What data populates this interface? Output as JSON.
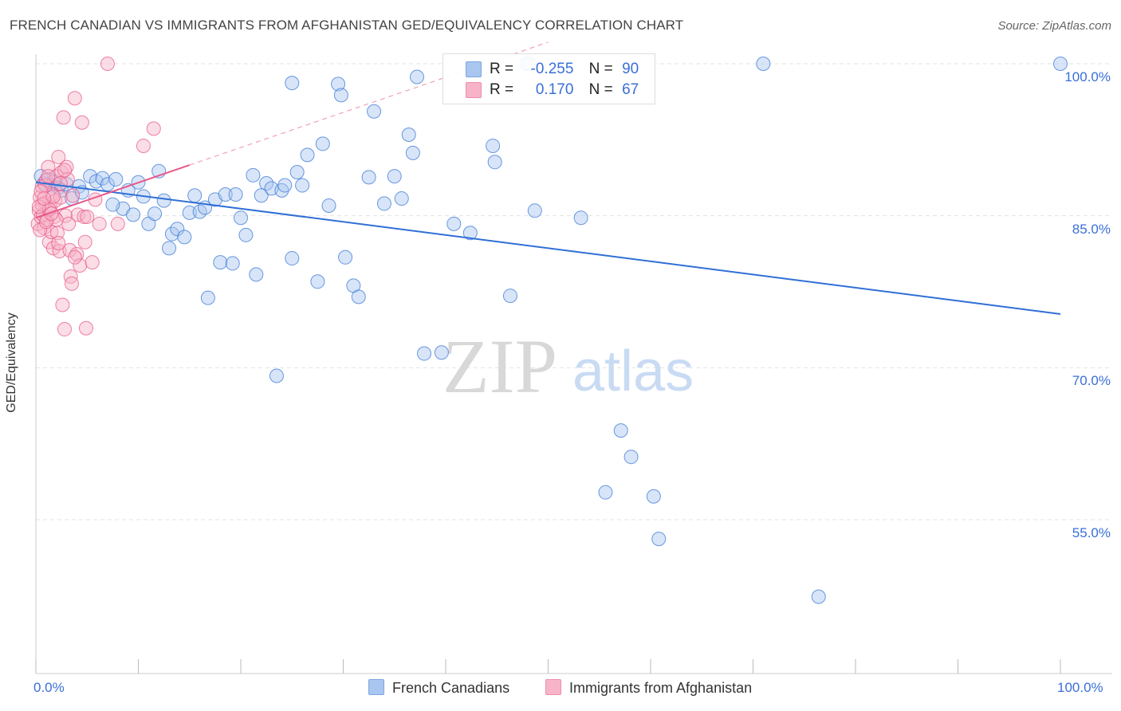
{
  "title": "FRENCH CANADIAN VS IMMIGRANTS FROM AFGHANISTAN GED/EQUIVALENCY CORRELATION CHART",
  "source": "Source: ZipAtlas.com",
  "watermark": {
    "zip": "ZIP",
    "atlas": "atlas"
  },
  "legend": {
    "rows": [
      {
        "r_label": "R =",
        "r_value": "-0.255",
        "n_label": "N =",
        "n_value": "90",
        "color": "#a8c6f0"
      },
      {
        "r_label": "R =",
        "r_value": "0.170",
        "n_label": "N =",
        "n_value": "67",
        "color": "#f7b4c8"
      }
    ],
    "bottom": [
      {
        "label": "French Canadians",
        "color": "#a8c6f0"
      },
      {
        "label": "Immigrants from Afghanistan",
        "color": "#f7b4c8"
      }
    ]
  },
  "chart_data": {
    "type": "scatter",
    "title": "FRENCH CANADIAN VS IMMIGRANTS FROM AFGHANISTAN GED/EQUIVALENCY CORRELATION CHART",
    "xlabel": "",
    "ylabel": "GED/Equivalency",
    "xlim": [
      0,
      100
    ],
    "ylim": [
      40,
      101.5
    ],
    "x_tick_labels": [
      "0.0%",
      "100.0%"
    ],
    "y_ticks": [
      100,
      85,
      70,
      55
    ],
    "y_tick_labels": [
      "100.0%",
      "85.0%",
      "70.0%",
      "55.0%"
    ],
    "grid": true,
    "legend_position": "top-center",
    "series": [
      {
        "name": "French Canadians",
        "color": "#3a78d6",
        "fill": "#a8c6f0",
        "r": -0.255,
        "n": 90,
        "trend": {
          "x": [
            0,
            100
          ],
          "y": [
            88.3,
            75.3
          ]
        },
        "points": [
          [
            0.5,
            88.9
          ],
          [
            0.8,
            88.2
          ],
          [
            1.2,
            88.6
          ],
          [
            1.5,
            88.0
          ],
          [
            1.8,
            88.4
          ],
          [
            2.2,
            87.8
          ],
          [
            2.5,
            87.5
          ],
          [
            3.0,
            88.1
          ],
          [
            3.5,
            86.7
          ],
          [
            4.2,
            87.9
          ],
          [
            5.3,
            88.9
          ],
          [
            5.9,
            88.4
          ],
          [
            6.5,
            88.7
          ],
          [
            7.0,
            88.1
          ],
          [
            7.8,
            88.6
          ],
          [
            8.5,
            85.7
          ],
          [
            9.0,
            87.5
          ],
          [
            9.5,
            85.1
          ],
          [
            10.0,
            88.3
          ],
          [
            10.5,
            86.9
          ],
          [
            11.0,
            84.2
          ],
          [
            11.6,
            85.2
          ],
          [
            12.0,
            89.4
          ],
          [
            12.5,
            86.5
          ],
          [
            13.0,
            81.8
          ],
          [
            13.3,
            83.2
          ],
          [
            13.8,
            83.7
          ],
          [
            14.5,
            82.9
          ],
          [
            15.0,
            85.3
          ],
          [
            15.5,
            87.0
          ],
          [
            16.0,
            85.4
          ],
          [
            16.5,
            85.8
          ],
          [
            16.8,
            76.9
          ],
          [
            17.5,
            86.6
          ],
          [
            18.0,
            80.4
          ],
          [
            18.5,
            87.1
          ],
          [
            19.2,
            80.3
          ],
          [
            19.5,
            87.1
          ],
          [
            20.0,
            84.8
          ],
          [
            20.5,
            83.1
          ],
          [
            21.2,
            89.0
          ],
          [
            21.5,
            79.2
          ],
          [
            22.0,
            87.0
          ],
          [
            22.5,
            88.2
          ],
          [
            23.0,
            87.7
          ],
          [
            23.5,
            69.2
          ],
          [
            24.0,
            87.5
          ],
          [
            24.3,
            88.0
          ],
          [
            25.0,
            80.8
          ],
          [
            25.5,
            89.3
          ],
          [
            26.0,
            88.0
          ],
          [
            26.5,
            91.0
          ],
          [
            27.5,
            78.5
          ],
          [
            28.0,
            92.1
          ],
          [
            28.6,
            86.0
          ],
          [
            29.5,
            98.0
          ],
          [
            30.2,
            80.9
          ],
          [
            31.0,
            78.1
          ],
          [
            31.5,
            77.0
          ],
          [
            32.5,
            88.8
          ],
          [
            33.0,
            95.3
          ],
          [
            34.0,
            86.2
          ],
          [
            35.0,
            88.9
          ],
          [
            35.7,
            86.7
          ],
          [
            36.4,
            93.0
          ],
          [
            36.8,
            91.2
          ],
          [
            37.2,
            98.7
          ],
          [
            37.9,
            71.4
          ],
          [
            39.6,
            71.5
          ],
          [
            40.8,
            84.2
          ],
          [
            42.4,
            83.3
          ],
          [
            44.6,
            91.9
          ],
          [
            44.8,
            90.3
          ],
          [
            46.3,
            77.1
          ],
          [
            47.9,
            100.0
          ],
          [
            48.2,
            100.0
          ],
          [
            48.7,
            85.5
          ],
          [
            53.2,
            84.8
          ],
          [
            55.6,
            57.7
          ],
          [
            57.1,
            63.8
          ],
          [
            58.1,
            61.2
          ],
          [
            60.3,
            57.3
          ],
          [
            60.8,
            53.1
          ],
          [
            76.4,
            47.4
          ],
          [
            71.0,
            100.0
          ],
          [
            100.0,
            100.0
          ],
          [
            25.0,
            98.1
          ],
          [
            29.8,
            96.9
          ],
          [
            4.5,
            87.3
          ],
          [
            7.5,
            86.1
          ]
        ]
      },
      {
        "name": "Immigrants from Afghanistan",
        "color": "#e8588a",
        "fill": "#f7b4c8",
        "r": 0.17,
        "n": 67,
        "trend": {
          "x": [
            0,
            15
          ],
          "y": [
            84.8,
            90.0
          ]
        },
        "points": [
          [
            0.2,
            84.2
          ],
          [
            0.3,
            85.5
          ],
          [
            0.4,
            86.8
          ],
          [
            0.5,
            84.9
          ],
          [
            0.6,
            87.9
          ],
          [
            0.7,
            85.1
          ],
          [
            0.8,
            83.8
          ],
          [
            0.9,
            86.3
          ],
          [
            1.0,
            88.5
          ],
          [
            1.1,
            84.6
          ],
          [
            1.2,
            89.8
          ],
          [
            1.3,
            82.4
          ],
          [
            1.4,
            85.8
          ],
          [
            1.5,
            83.4
          ],
          [
            1.6,
            87.1
          ],
          [
            1.7,
            81.8
          ],
          [
            1.8,
            84.9
          ],
          [
            1.9,
            86.5
          ],
          [
            2.0,
            88.9
          ],
          [
            2.1,
            83.3
          ],
          [
            2.2,
            90.8
          ],
          [
            2.3,
            81.5
          ],
          [
            2.4,
            86.8
          ],
          [
            2.5,
            89.3
          ],
          [
            2.6,
            76.2
          ],
          [
            2.7,
            94.7
          ],
          [
            2.8,
            73.8
          ],
          [
            2.9,
            85.0
          ],
          [
            3.0,
            89.8
          ],
          [
            3.1,
            88.6
          ],
          [
            3.2,
            84.2
          ],
          [
            3.3,
            81.6
          ],
          [
            3.4,
            79.0
          ],
          [
            3.5,
            78.3
          ],
          [
            3.6,
            87.0
          ],
          [
            3.8,
            96.6
          ],
          [
            4.0,
            81.2
          ],
          [
            4.1,
            85.1
          ],
          [
            4.3,
            80.1
          ],
          [
            4.5,
            94.2
          ],
          [
            4.7,
            84.9
          ],
          [
            4.8,
            82.4
          ],
          [
            4.9,
            73.9
          ],
          [
            5.0,
            84.9
          ],
          [
            5.5,
            80.4
          ],
          [
            5.8,
            86.6
          ],
          [
            6.2,
            84.2
          ],
          [
            7.0,
            100.0
          ],
          [
            8.0,
            84.2
          ],
          [
            10.5,
            91.9
          ],
          [
            11.5,
            93.6
          ],
          [
            0.4,
            83.6
          ],
          [
            0.6,
            86.1
          ],
          [
            0.9,
            88.0
          ],
          [
            1.3,
            85.6
          ],
          [
            1.7,
            86.9
          ],
          [
            2.0,
            84.6
          ],
          [
            2.4,
            88.2
          ],
          [
            2.8,
            89.5
          ],
          [
            0.3,
            85.9
          ],
          [
            0.5,
            87.4
          ],
          [
            1.0,
            84.4
          ],
          [
            1.5,
            85.2
          ],
          [
            0.8,
            86.7
          ],
          [
            1.2,
            88.9
          ],
          [
            3.8,
            80.9
          ],
          [
            2.2,
            82.3
          ]
        ]
      }
    ]
  }
}
